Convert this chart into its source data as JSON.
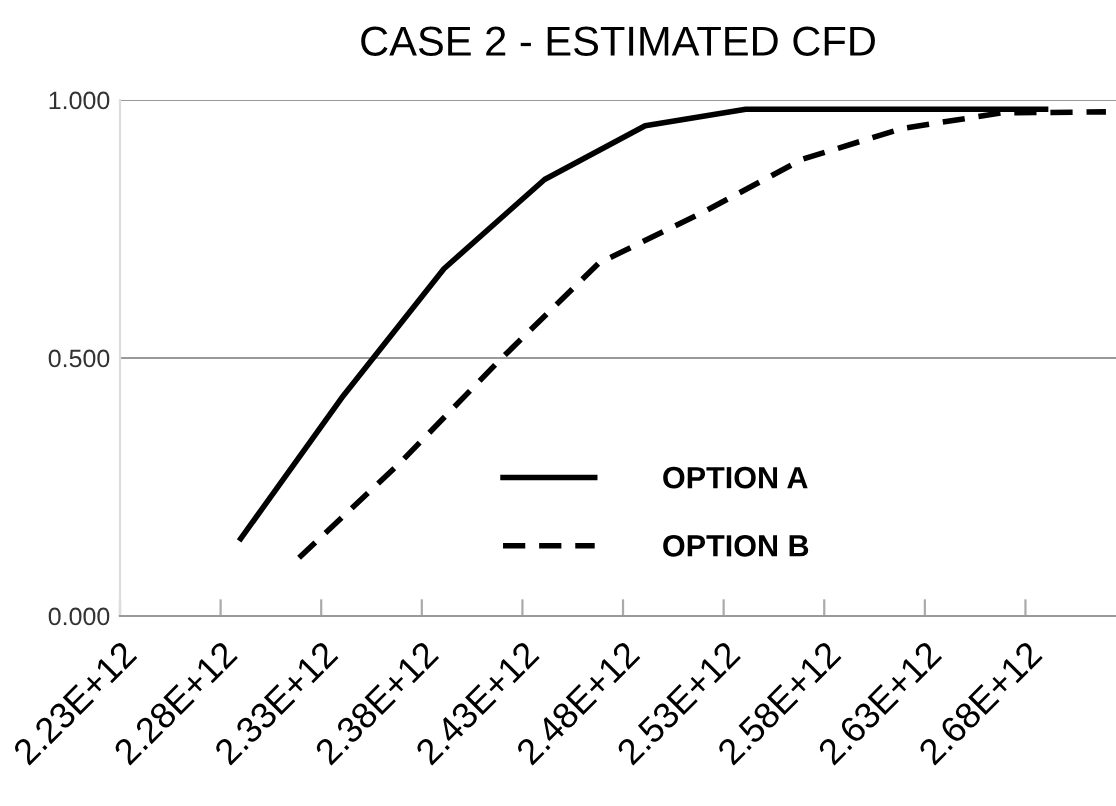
{
  "chart_data": {
    "type": "line",
    "title": "CASE 2 - ESTIMATED CFD",
    "series": [
      {
        "name": "OPTION A",
        "color": "#000000",
        "line_style": "solid",
        "x": [
          2290000000000.0,
          2341000000000.0,
          2391000000000.0,
          2441000000000.0,
          2491000000000.0,
          2541000000000.0,
          2591000000000.0,
          2641000000000.0,
          2690000000000.0
        ],
        "values": [
          0.15,
          0.427,
          0.673,
          0.846,
          0.95,
          0.982,
          0.982,
          0.982,
          0.982
        ]
      },
      {
        "name": "OPTION B",
        "color": "#000000",
        "line_style": "dashed",
        "x": [
          2319000000000.0,
          2369000000000.0,
          2419000000000.0,
          2468000000000.0,
          2519000000000.0,
          2569000000000.0,
          2619000000000.0,
          2668000000000.0,
          2720000000000.0
        ],
        "values": [
          0.113,
          0.296,
          0.497,
          0.684,
          0.781,
          0.885,
          0.945,
          0.975,
          0.977
        ]
      }
    ],
    "xlim": [
      2230000000000.0,
      2725000000000.0
    ],
    "xticks": [
      {
        "value": 2230000000000.0,
        "label": "2.23E+12"
      },
      {
        "value": 2280000000000.0,
        "label": "2.28E+12"
      },
      {
        "value": 2330000000000.0,
        "label": "2.33E+12"
      },
      {
        "value": 2380000000000.0,
        "label": "2.38E+12"
      },
      {
        "value": 2430000000000.0,
        "label": "2.43E+12"
      },
      {
        "value": 2480000000000.0,
        "label": "2.48E+12"
      },
      {
        "value": 2530000000000.0,
        "label": "2.53E+12"
      },
      {
        "value": 2580000000000.0,
        "label": "2.58E+12"
      },
      {
        "value": 2630000000000.0,
        "label": "2.63E+12"
      },
      {
        "value": 2680000000000.0,
        "label": "2.68E+12"
      }
    ],
    "ylim": [
      0,
      1
    ],
    "yticks": [
      {
        "value": 0,
        "label": "0.000"
      },
      {
        "value": 0.5,
        "label": "0.500"
      },
      {
        "value": 1,
        "label": "1.000"
      }
    ],
    "grid": "y",
    "legend": "lower right",
    "marker": "none"
  }
}
